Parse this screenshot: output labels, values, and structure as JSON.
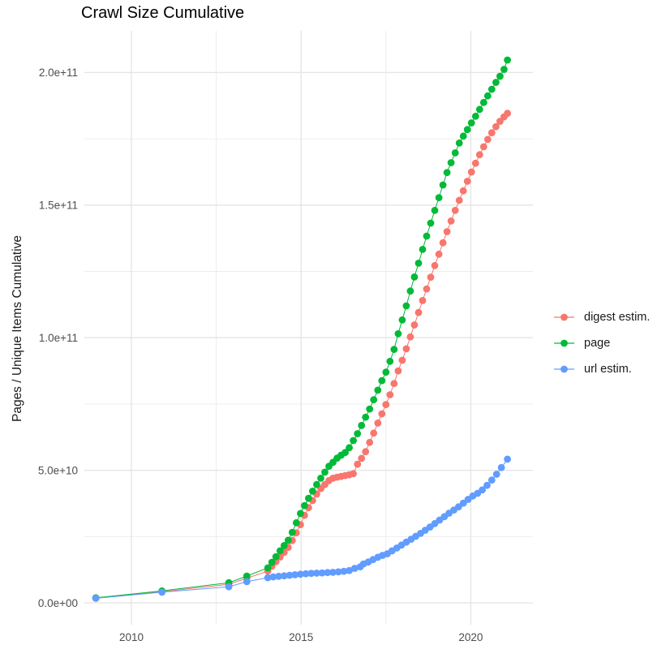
{
  "figure": {
    "title": "Crawl Size Cumulative"
  },
  "chart_data": {
    "type": "line",
    "title": "Crawl Size Cumulative",
    "xlabel": "",
    "ylabel": "Pages / Unique Items Cumulative",
    "value_unit": "billions of pages (1 unit = 1e9)",
    "grid": true,
    "legend_position": "right",
    "x_axis": {
      "range": [
        2008.3,
        2021.8
      ],
      "major_ticks": [
        {
          "value": 2010,
          "label": "2010"
        },
        {
          "value": 2015,
          "label": "2015"
        },
        {
          "value": 2020,
          "label": "2020"
        }
      ],
      "minor_ticks": [
        2012.5,
        2017.5
      ]
    },
    "y_axis": {
      "range": [
        0,
        215
      ],
      "major_ticks": [
        {
          "value": 0,
          "label": "0.0e+00"
        },
        {
          "value": 50,
          "label": "5.0e+10"
        },
        {
          "value": 100,
          "label": "1.0e+11"
        },
        {
          "value": 150,
          "label": "1.5e+11"
        },
        {
          "value": 200,
          "label": "2.0e+11"
        }
      ],
      "minor_ticks": [
        25,
        75,
        125,
        175
      ]
    },
    "series": [
      {
        "name": "digest estim.",
        "color": "#F8766D",
        "points": [
          [
            2008.95,
            1.8
          ],
          [
            2010.9,
            4.2
          ],
          [
            2012.87,
            7.0
          ],
          [
            2013.4,
            9.3
          ],
          [
            2014.02,
            12.0
          ],
          [
            2014.14,
            13.8
          ],
          [
            2014.26,
            15.5
          ],
          [
            2014.38,
            17.3
          ],
          [
            2014.5,
            19.0
          ],
          [
            2014.62,
            20.9
          ],
          [
            2014.74,
            23.5
          ],
          [
            2014.86,
            26.4
          ],
          [
            2014.98,
            29.5
          ],
          [
            2015.1,
            33.0
          ],
          [
            2015.22,
            35.9
          ],
          [
            2015.34,
            38.6
          ],
          [
            2015.46,
            41.0
          ],
          [
            2015.58,
            43.1
          ],
          [
            2015.7,
            44.6
          ],
          [
            2015.82,
            46.1
          ],
          [
            2015.94,
            47.0
          ],
          [
            2016.06,
            47.4
          ],
          [
            2016.18,
            47.7
          ],
          [
            2016.3,
            48.0
          ],
          [
            2016.42,
            48.3
          ],
          [
            2016.54,
            48.7
          ],
          [
            2016.66,
            52.3
          ],
          [
            2016.78,
            54.5
          ],
          [
            2016.9,
            57.0
          ],
          [
            2017.02,
            60.5
          ],
          [
            2017.14,
            64.0
          ],
          [
            2017.26,
            67.8
          ],
          [
            2017.38,
            71.3
          ],
          [
            2017.5,
            74.8
          ],
          [
            2017.62,
            78.5
          ],
          [
            2017.74,
            82.7
          ],
          [
            2017.86,
            87.5
          ],
          [
            2017.98,
            91.5
          ],
          [
            2018.1,
            95.8
          ],
          [
            2018.22,
            100.3
          ],
          [
            2018.34,
            104.8
          ],
          [
            2018.46,
            109.5
          ],
          [
            2018.58,
            114.0
          ],
          [
            2018.7,
            118.4
          ],
          [
            2018.82,
            122.8
          ],
          [
            2018.94,
            127.2
          ],
          [
            2019.06,
            131.5
          ],
          [
            2019.18,
            135.8
          ],
          [
            2019.3,
            140.0
          ],
          [
            2019.42,
            144.0
          ],
          [
            2019.54,
            148.0
          ],
          [
            2019.66,
            151.8
          ],
          [
            2019.78,
            155.4
          ],
          [
            2019.9,
            159.0
          ],
          [
            2020.02,
            162.5
          ],
          [
            2020.14,
            165.8
          ],
          [
            2020.26,
            169.0
          ],
          [
            2020.38,
            172.0
          ],
          [
            2020.5,
            174.8
          ],
          [
            2020.62,
            177.3
          ],
          [
            2020.74,
            179.6
          ],
          [
            2020.86,
            181.6
          ],
          [
            2020.98,
            183.3
          ],
          [
            2021.08,
            184.6
          ]
        ]
      },
      {
        "name": "page",
        "color": "#00BA38",
        "points": [
          [
            2008.95,
            1.9
          ],
          [
            2010.9,
            4.5
          ],
          [
            2012.87,
            7.6
          ],
          [
            2013.4,
            10.1
          ],
          [
            2014.02,
            13.2
          ],
          [
            2014.14,
            15.3
          ],
          [
            2014.26,
            17.4
          ],
          [
            2014.38,
            19.6
          ],
          [
            2014.5,
            21.6
          ],
          [
            2014.62,
            23.6
          ],
          [
            2014.74,
            26.6
          ],
          [
            2014.86,
            30.2
          ],
          [
            2014.98,
            33.7
          ],
          [
            2015.1,
            36.7
          ],
          [
            2015.22,
            39.4
          ],
          [
            2015.34,
            42.1
          ],
          [
            2015.46,
            44.6
          ],
          [
            2015.58,
            47.0
          ],
          [
            2015.7,
            49.3
          ],
          [
            2015.82,
            51.5
          ],
          [
            2015.94,
            53.0
          ],
          [
            2016.06,
            54.6
          ],
          [
            2016.18,
            55.7
          ],
          [
            2016.3,
            56.7
          ],
          [
            2016.42,
            58.5
          ],
          [
            2016.54,
            61.2
          ],
          [
            2016.66,
            63.8
          ],
          [
            2016.78,
            66.9
          ],
          [
            2016.9,
            70.0
          ],
          [
            2017.02,
            73.1
          ],
          [
            2017.14,
            76.6
          ],
          [
            2017.26,
            80.2
          ],
          [
            2017.38,
            83.8
          ],
          [
            2017.5,
            87.0
          ],
          [
            2017.62,
            91.1
          ],
          [
            2017.74,
            95.6
          ],
          [
            2017.86,
            101.5
          ],
          [
            2017.98,
            106.7
          ],
          [
            2018.1,
            112.0
          ],
          [
            2018.22,
            117.6
          ],
          [
            2018.34,
            122.9
          ],
          [
            2018.46,
            128.1
          ],
          [
            2018.58,
            133.3
          ],
          [
            2018.7,
            138.3
          ],
          [
            2018.82,
            143.2
          ],
          [
            2018.94,
            148.0
          ],
          [
            2019.06,
            152.8
          ],
          [
            2019.18,
            157.6
          ],
          [
            2019.3,
            162.3
          ],
          [
            2019.42,
            166.0
          ],
          [
            2019.54,
            169.7
          ],
          [
            2019.66,
            173.4
          ],
          [
            2019.78,
            176.0
          ],
          [
            2019.9,
            178.5
          ],
          [
            2020.02,
            181.0
          ],
          [
            2020.14,
            183.5
          ],
          [
            2020.26,
            186.1
          ],
          [
            2020.38,
            188.7
          ],
          [
            2020.5,
            191.2
          ],
          [
            2020.62,
            193.7
          ],
          [
            2020.74,
            196.3
          ],
          [
            2020.86,
            198.6
          ],
          [
            2020.98,
            201.2
          ],
          [
            2021.08,
            204.7
          ]
        ]
      },
      {
        "name": "url estim.",
        "color": "#619CFF",
        "points": [
          [
            2008.95,
            1.7
          ],
          [
            2010.9,
            4.0
          ],
          [
            2012.87,
            6.1
          ],
          [
            2013.4,
            8.0
          ],
          [
            2014.02,
            9.5
          ],
          [
            2014.18,
            9.8
          ],
          [
            2014.34,
            10.0
          ],
          [
            2014.5,
            10.2
          ],
          [
            2014.66,
            10.4
          ],
          [
            2014.82,
            10.6
          ],
          [
            2014.98,
            10.8
          ],
          [
            2015.14,
            11.0
          ],
          [
            2015.3,
            11.1
          ],
          [
            2015.46,
            11.2
          ],
          [
            2015.62,
            11.3
          ],
          [
            2015.78,
            11.4
          ],
          [
            2015.94,
            11.5
          ],
          [
            2016.1,
            11.7
          ],
          [
            2016.26,
            11.9
          ],
          [
            2016.42,
            12.2
          ],
          [
            2016.58,
            13.0
          ],
          [
            2016.74,
            13.6
          ],
          [
            2016.84,
            14.7
          ],
          [
            2016.98,
            15.4
          ],
          [
            2017.12,
            16.3
          ],
          [
            2017.26,
            17.2
          ],
          [
            2017.4,
            17.9
          ],
          [
            2017.54,
            18.5
          ],
          [
            2017.68,
            19.6
          ],
          [
            2017.82,
            20.7
          ],
          [
            2017.96,
            21.8
          ],
          [
            2018.1,
            22.9
          ],
          [
            2018.24,
            24.0
          ],
          [
            2018.38,
            25.1
          ],
          [
            2018.52,
            26.2
          ],
          [
            2018.66,
            27.4
          ],
          [
            2018.8,
            28.6
          ],
          [
            2018.94,
            29.9
          ],
          [
            2019.08,
            31.2
          ],
          [
            2019.22,
            32.5
          ],
          [
            2019.36,
            33.8
          ],
          [
            2019.5,
            35.0
          ],
          [
            2019.64,
            36.2
          ],
          [
            2019.78,
            37.6
          ],
          [
            2019.92,
            39.0
          ],
          [
            2020.06,
            40.3
          ],
          [
            2020.2,
            41.3
          ],
          [
            2020.34,
            42.6
          ],
          [
            2020.48,
            44.3
          ],
          [
            2020.62,
            46.3
          ],
          [
            2020.76,
            48.5
          ],
          [
            2020.9,
            51.0
          ],
          [
            2021.08,
            54.2
          ]
        ]
      }
    ]
  }
}
